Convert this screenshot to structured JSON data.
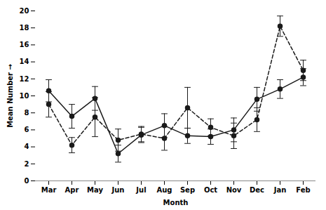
{
  "chart_data": {
    "type": "line",
    "xlabel": "Month",
    "ylabel": "Mean Number",
    "categories": [
      "Mar",
      "Apr",
      "May",
      "Jun",
      "Jul",
      "Aug",
      "Sep",
      "Oct",
      "Nov",
      "Dec",
      "Jan",
      "Feb"
    ],
    "series": [
      {
        "values": [
          9.0,
          4.2,
          7.5,
          4.8,
          5.5,
          5.0,
          8.6,
          6.3,
          5.3,
          7.2,
          18.2,
          13.0
        ],
        "errors": [
          1.5,
          0.9,
          2.3,
          1.3,
          0.9,
          1.4,
          2.4,
          1.0,
          1.5,
          1.4,
          1.2,
          1.2
        ],
        "color": "#1a1a1a",
        "line_style": "dashed",
        "marker": "circle"
      },
      {
        "values": [
          10.6,
          7.6,
          9.7,
          3.2,
          5.4,
          6.5,
          5.3,
          5.2,
          6.0,
          9.6,
          10.8,
          12.2
        ],
        "errors": [
          1.3,
          1.4,
          1.4,
          1.0,
          0.9,
          1.4,
          0.9,
          0.9,
          1.4,
          1.4,
          1.1,
          1.0
        ],
        "color": "#1a1a1a",
        "line_style": "solid",
        "marker": "circle"
      }
    ],
    "ylim": [
      0,
      20
    ],
    "yticks": [
      0,
      2,
      4,
      6,
      8,
      10,
      12,
      14,
      16,
      18,
      20
    ],
    "grid": false
  }
}
